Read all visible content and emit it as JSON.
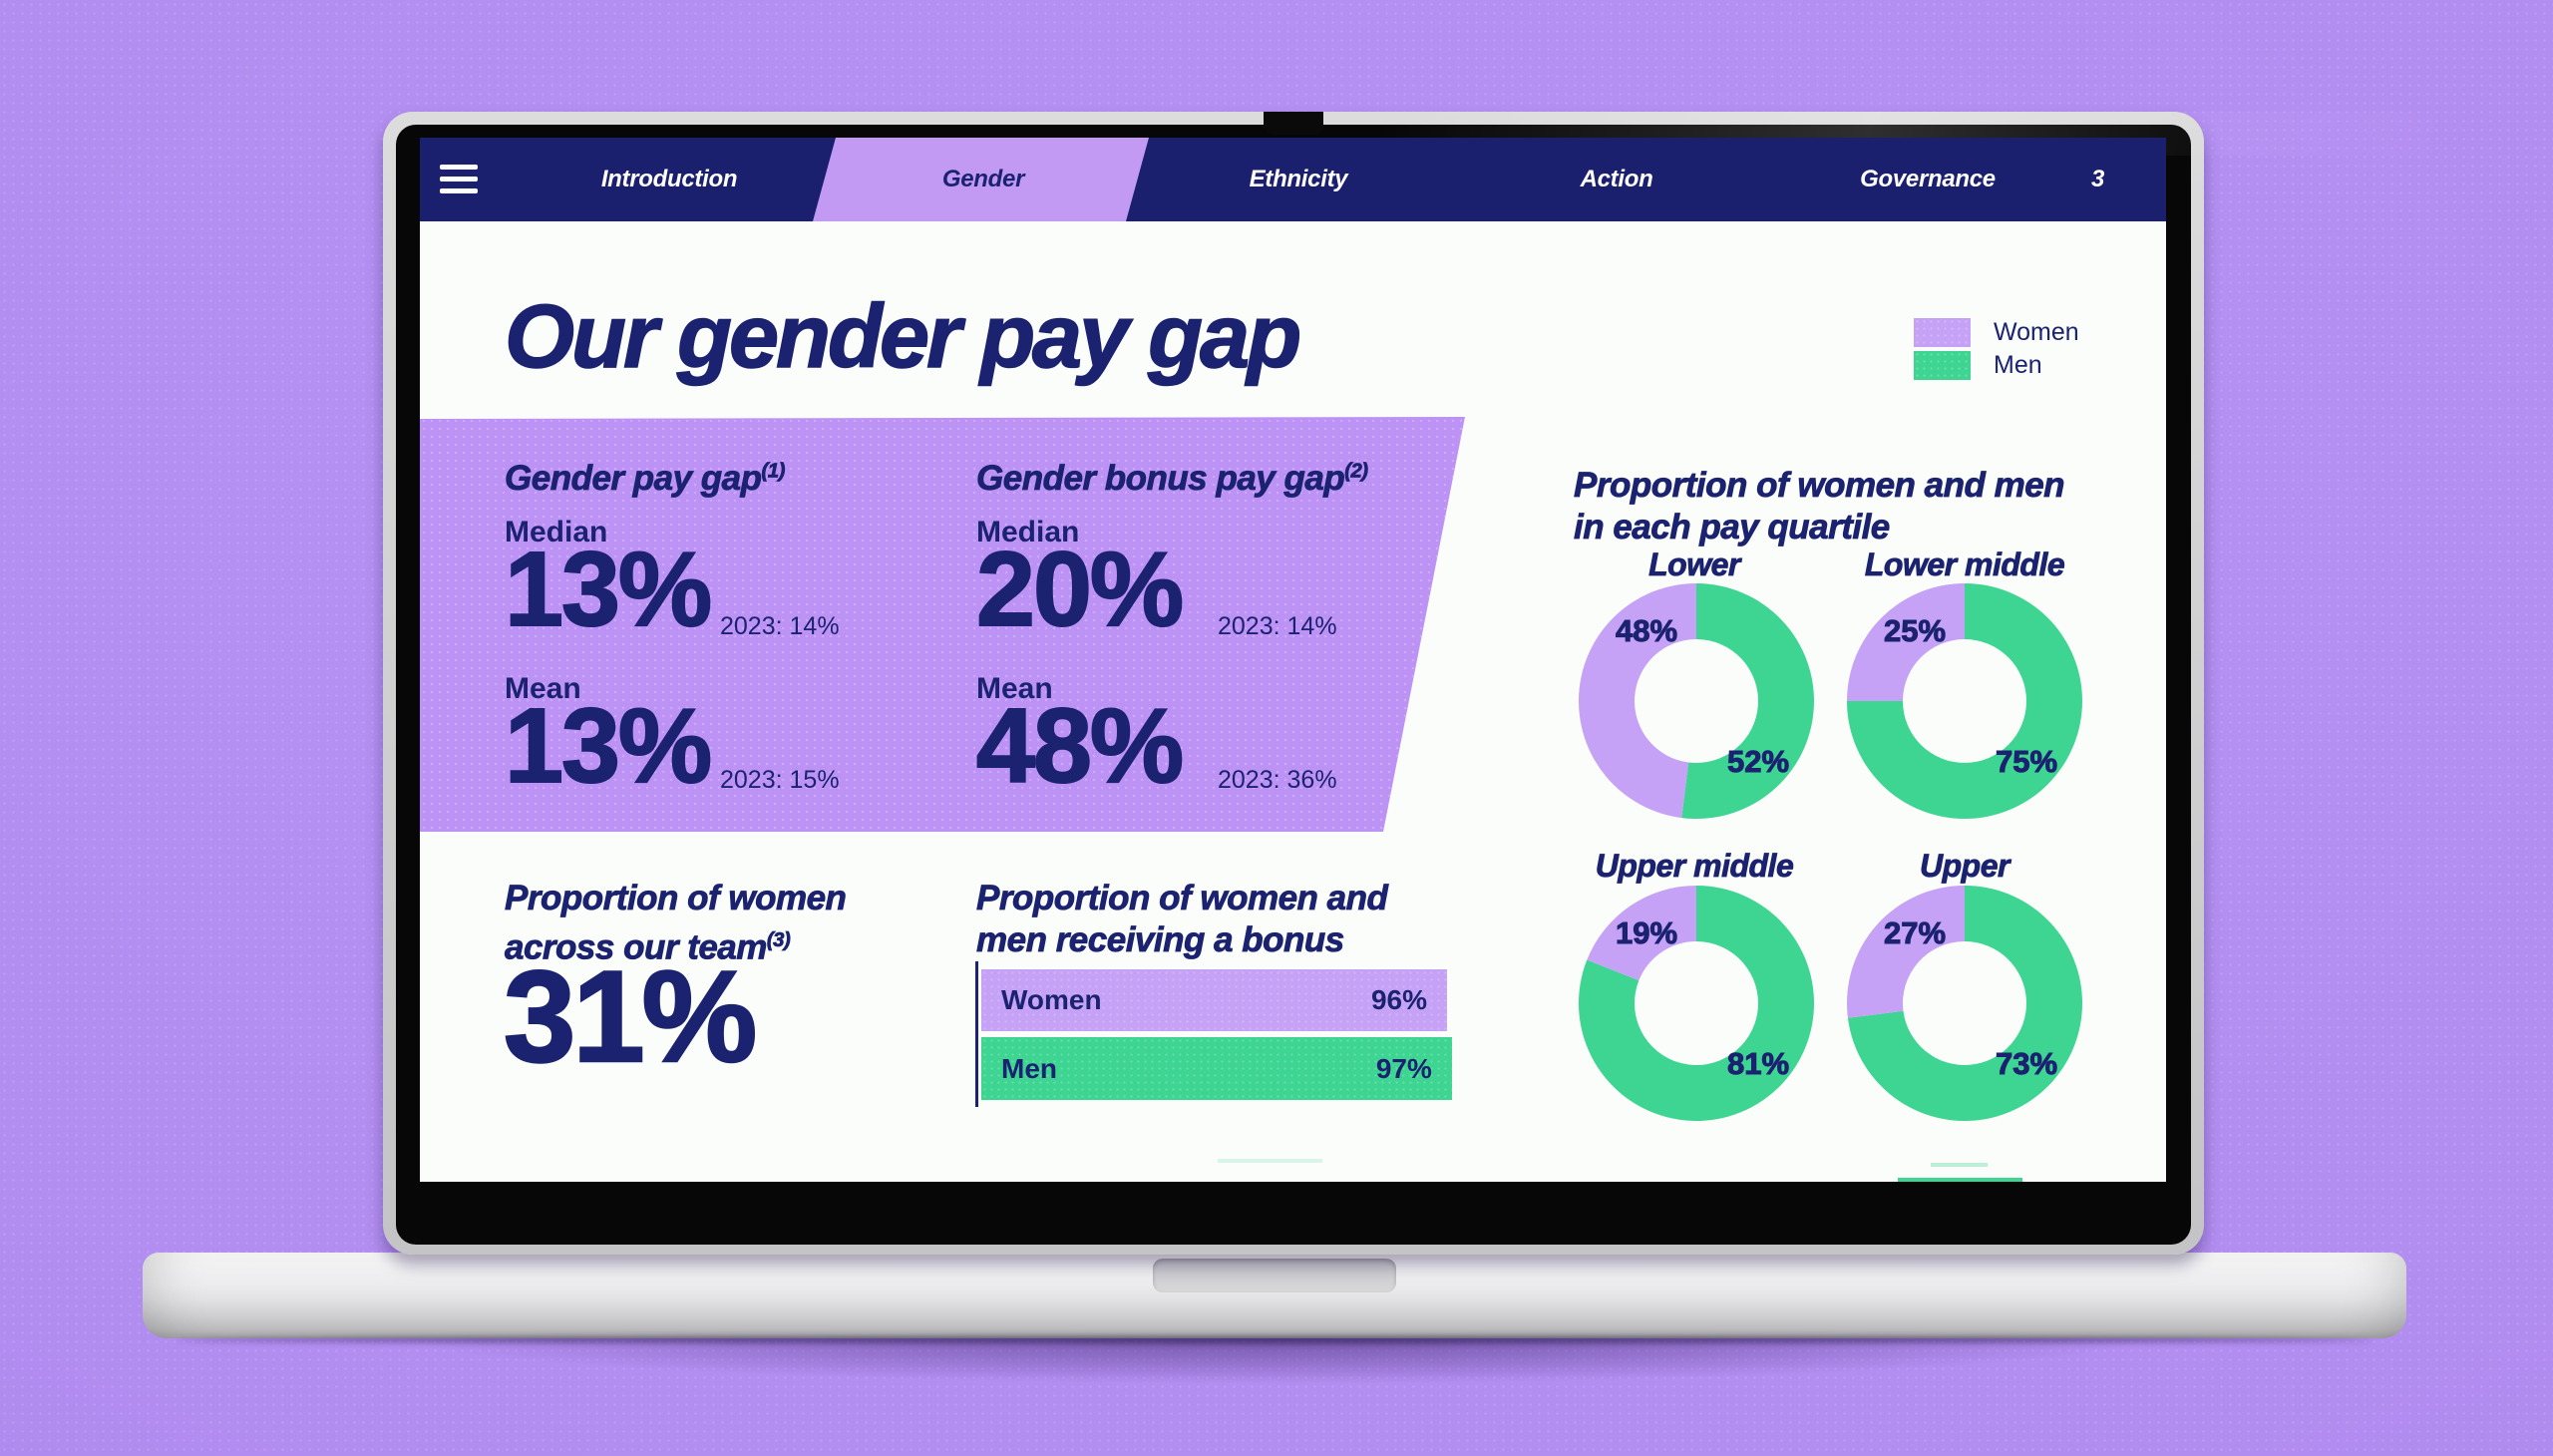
{
  "colors": {
    "background": "#b28df0",
    "navy": "#1b2270",
    "nav_bg": "#1a1f6e",
    "tab_highlight": "#c29af4",
    "panel_purple": "#bd92f5",
    "women_purple": "#c6a2f6",
    "men_green": "#3ed593",
    "screen_bg": "#fafdfa"
  },
  "nav": {
    "tabs": [
      {
        "label": "Introduction",
        "active": false
      },
      {
        "label": "Gender",
        "active": true
      },
      {
        "label": "Ethnicity",
        "active": false
      },
      {
        "label": "Action",
        "active": false
      },
      {
        "label": "Governance",
        "active": false
      }
    ],
    "page_number": "3"
  },
  "title": "Our gender pay gap",
  "legend": {
    "women": "Women",
    "men": "Men"
  },
  "pay_gap_panel": {
    "gap": {
      "heading": "Gender pay gap",
      "footnote": "(1)",
      "median_label": "Median",
      "median_value": "13%",
      "median_previous": "2023: 14%",
      "mean_label": "Mean",
      "mean_value": "13%",
      "mean_previous": "2023: 15%"
    },
    "bonus": {
      "heading": "Gender bonus pay gap",
      "footnote": "(2)",
      "median_label": "Median",
      "median_value": "20%",
      "median_previous": "2023: 14%",
      "mean_label": "Mean",
      "mean_value": "48%",
      "mean_previous": "2023: 36%"
    }
  },
  "team_proportion": {
    "heading_line1": "Proportion of women",
    "heading_line2": "across our team",
    "footnote": "(3)",
    "value": "31%"
  },
  "bonus_received": {
    "heading_line1": "Proportion of women and",
    "heading_line2": "men receiving a bonus",
    "bars": [
      {
        "label": "Women",
        "value_label": "96%",
        "pct": 96,
        "series": "women"
      },
      {
        "label": "Men",
        "value_label": "97%",
        "pct": 97,
        "series": "men"
      }
    ]
  },
  "pay_quartiles": {
    "heading_line1": "Proportion of women and men",
    "heading_line2": "in each pay quartile",
    "donuts": [
      {
        "title": "Lower",
        "women_pct": 48,
        "men_pct": 52,
        "women_label": "48%",
        "men_label": "52%"
      },
      {
        "title": "Lower middle",
        "women_pct": 25,
        "men_pct": 75,
        "women_label": "25%",
        "men_label": "75%"
      },
      {
        "title": "Upper middle",
        "women_pct": 19,
        "men_pct": 81,
        "women_label": "19%",
        "men_label": "81%"
      },
      {
        "title": "Upper",
        "women_pct": 27,
        "men_pct": 73,
        "women_label": "27%",
        "men_label": "73%"
      }
    ]
  },
  "chart_data": [
    {
      "type": "bar",
      "title": "Proportion of women and men receiving a bonus",
      "categories": [
        "Women",
        "Men"
      ],
      "values": [
        96,
        97
      ],
      "unit": "%",
      "xlim": [
        0,
        100
      ]
    },
    {
      "type": "pie",
      "title": "Proportion of women and men in each pay quartile",
      "series_names": [
        "Women",
        "Men"
      ],
      "charts": [
        {
          "label": "Lower",
          "women": 48,
          "men": 52
        },
        {
          "label": "Lower middle",
          "women": 25,
          "men": 75
        },
        {
          "label": "Upper middle",
          "women": 19,
          "men": 81
        },
        {
          "label": "Upper",
          "women": 27,
          "men": 73
        }
      ],
      "unit": "%"
    }
  ]
}
